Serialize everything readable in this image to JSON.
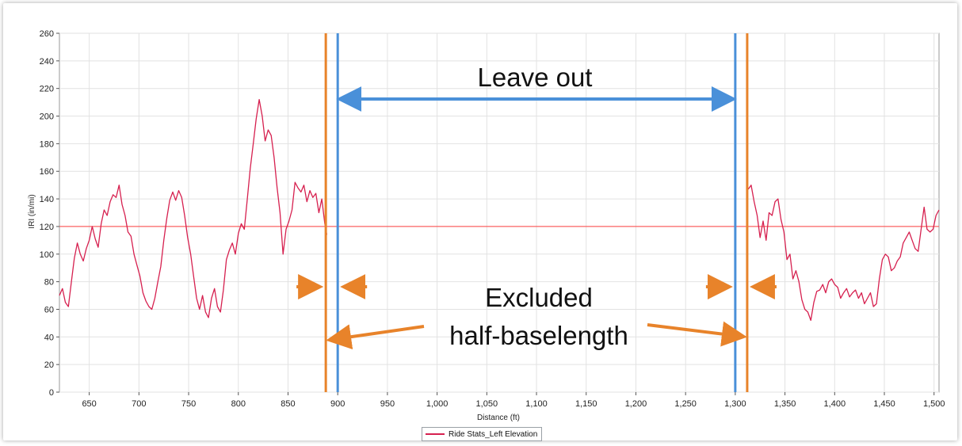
{
  "chart_data": {
    "type": "line",
    "xlabel": "Distance (ft)",
    "ylabel": "IRI (in/mi)",
    "xlim": [
      620,
      1505
    ],
    "ylim": [
      0,
      260
    ],
    "xticks": [
      650,
      700,
      750,
      800,
      850,
      900,
      950,
      1000,
      1050,
      1100,
      1150,
      1200,
      1250,
      1300,
      1350,
      1400,
      1450,
      1500
    ],
    "xtick_labels": [
      "650",
      "700",
      "750",
      "800",
      "850",
      "900",
      "950",
      "1,000",
      "1,050",
      "1,100",
      "1,150",
      "1,200",
      "1,250",
      "1,300",
      "1,350",
      "1,400",
      "1,450",
      "1,500"
    ],
    "yticks": [
      0,
      20,
      40,
      60,
      80,
      100,
      120,
      140,
      160,
      180,
      200,
      220,
      240,
      260
    ],
    "grid": true,
    "threshold": 120,
    "legend": {
      "position": "bottom-center",
      "label": "Ride Stats_Left Elevation"
    },
    "colors": {
      "series": "#d6204f",
      "threshold": "#ff4040",
      "leave_out": "#4a90d9",
      "excluded": "#e8832a"
    },
    "series": [
      {
        "name": "Ride Stats_Left Elevation",
        "segments": [
          {
            "x": [
              620,
              623,
              626,
              629,
              632,
              635,
              638,
              641,
              644,
              647,
              650,
              653,
              656,
              659,
              662,
              665,
              668,
              671,
              674,
              677,
              680,
              683,
              686,
              689,
              692,
              695,
              698,
              701,
              704,
              707,
              710,
              713,
              716,
              719,
              722,
              725,
              728,
              731,
              734,
              737,
              740,
              743,
              746,
              749,
              752,
              755,
              758,
              761,
              764,
              767,
              770,
              773,
              776,
              779,
              782,
              785,
              788,
              791,
              794,
              797,
              800,
              803,
              806,
              809,
              812,
              815,
              818,
              821,
              824,
              827,
              830,
              833,
              836,
              839,
              842,
              845,
              848,
              851,
              854,
              857,
              860,
              863,
              866,
              869,
              872,
              875,
              878,
              881,
              884,
              887,
              889
            ],
            "y": [
              70,
              75,
              65,
              62,
              80,
              97,
              108,
              100,
              95,
              104,
              110,
              120,
              111,
              105,
              122,
              132,
              128,
              138,
              143,
              141,
              150,
              136,
              128,
              116,
              113,
              100,
              92,
              84,
              72,
              66,
              62,
              60,
              68,
              80,
              91,
              110,
              126,
              139,
              145,
              139,
              146,
              141,
              128,
              112,
              100,
              84,
              68,
              60,
              70,
              58,
              54,
              68,
              75,
              62,
              58,
              74,
              96,
              103,
              108,
              100,
              115,
              122,
              118,
              140,
              162,
              180,
              198,
              212,
              200,
              182,
              190,
              186,
              170,
              148,
              130,
              100,
              118,
              124,
              132,
              152,
              148,
              145,
              150,
              138,
              146,
              141,
              144,
              130,
              140,
              122,
              114
            ]
          },
          {
            "x": [
              1313,
              1316,
              1319,
              1322,
              1325,
              1328,
              1331,
              1334,
              1337,
              1340,
              1343,
              1346,
              1349,
              1352,
              1355,
              1358,
              1361,
              1364,
              1367,
              1370,
              1373,
              1376,
              1379,
              1382,
              1385,
              1388,
              1391,
              1394,
              1397,
              1400,
              1403,
              1406,
              1409,
              1412,
              1415,
              1418,
              1421,
              1424,
              1427,
              1430,
              1433,
              1436,
              1439,
              1442,
              1445,
              1448,
              1451,
              1454,
              1457,
              1460,
              1463,
              1466,
              1469,
              1472,
              1475,
              1478,
              1481,
              1484,
              1487,
              1490,
              1493,
              1496,
              1499,
              1502,
              1505
            ],
            "y": [
              147,
              150,
              138,
              128,
              112,
              124,
              110,
              130,
              128,
              138,
              140,
              125,
              116,
              96,
              100,
              82,
              88,
              80,
              67,
              60,
              58,
              52,
              65,
              73,
              74,
              78,
              72,
              80,
              82,
              78,
              76,
              68,
              72,
              75,
              69,
              72,
              74,
              68,
              72,
              64,
              68,
              72,
              62,
              64,
              82,
              96,
              100,
              98,
              88,
              90,
              95,
              98,
              108,
              112,
              116,
              110,
              104,
              102,
              118,
              134,
              118,
              116,
              118,
              128,
              132
            ]
          }
        ]
      }
    ],
    "annotations": [
      {
        "name": "leave-out",
        "text": "Leave out",
        "x_from": 900,
        "x_to": 1300
      },
      {
        "name": "excluded",
        "lines": [
          "Excluded",
          "half-baselength"
        ],
        "x_left": 888,
        "x_right": 1312
      }
    ]
  }
}
